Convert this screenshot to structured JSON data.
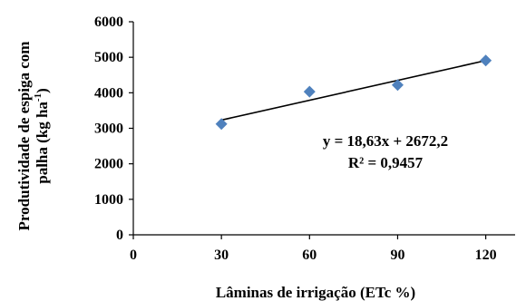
{
  "chart_data": {
    "type": "scatter",
    "x": [
      30,
      60,
      90,
      120
    ],
    "y": [
      3120,
      4030,
      4220,
      4910
    ],
    "xlabel": "Lâminas de irrigação (ETc %)",
    "ylabel_line1": "Produtividade de espiga com",
    "ylabel_line2_prefix": "palha (kg ha",
    "ylabel_line2_sup": "-1",
    "ylabel_line2_suffix": ")",
    "xlim": [
      0,
      130
    ],
    "ylim": [
      0,
      6000
    ],
    "x_ticks": [
      "0",
      "30",
      "60",
      "90",
      "120"
    ],
    "y_ticks": [
      "0",
      "1000",
      "2000",
      "3000",
      "4000",
      "5000",
      "6000"
    ],
    "grid": false,
    "marker": "diamond",
    "marker_color": "#4f81bd",
    "trendline": {
      "slope": 18.63,
      "intercept": 2672.2,
      "x_from": 30,
      "x_to": 120
    },
    "equation": "y = 18,63x + 2672,2",
    "r_squared": "R² = 0,9457"
  }
}
